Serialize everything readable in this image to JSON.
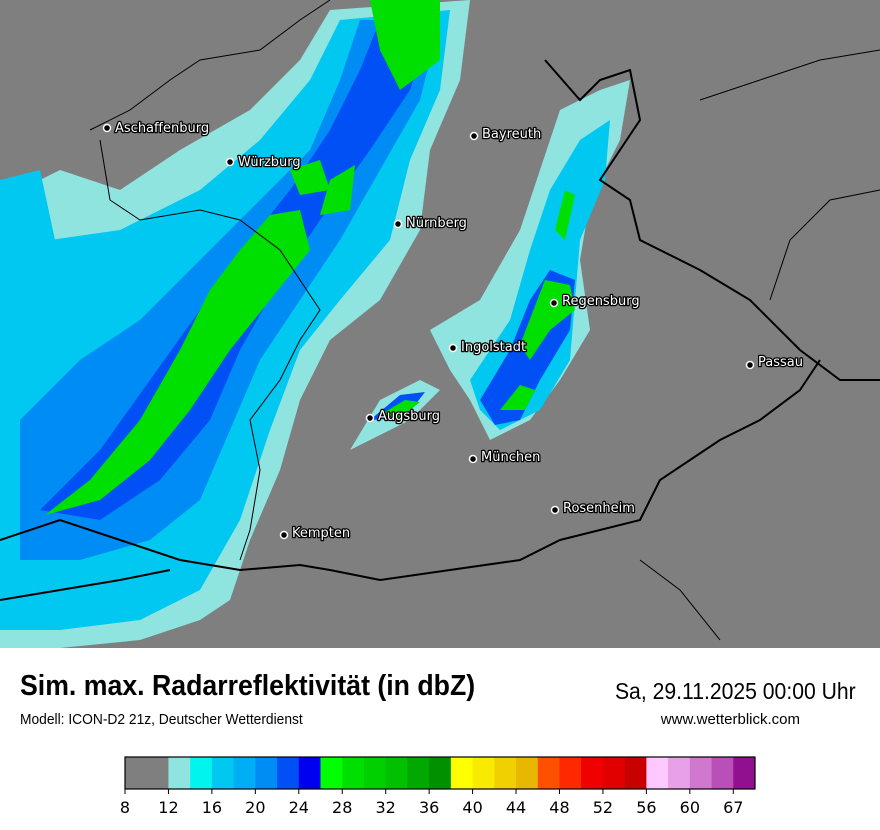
{
  "header": {
    "title": "Sim. max. Radarreflektivität (in dbZ)",
    "subtitle": "Modell: ICON-D2 21z, Deutscher Wetterdienst",
    "datetime": "Sa, 29.11.2025 00:00 Uhr",
    "website": "www.wetterblick.com"
  },
  "map": {
    "background_color": "#7f7f7f",
    "cities": [
      {
        "name": "Aschaffenburg"
      },
      {
        "name": "Würzburg"
      },
      {
        "name": "Bayreuth"
      },
      {
        "name": "Nürnberg"
      },
      {
        "name": "Regensburg"
      },
      {
        "name": "Ingolstadt"
      },
      {
        "name": "Passau"
      },
      {
        "name": "Augsburg"
      },
      {
        "name": "München"
      },
      {
        "name": "Rosenheim"
      },
      {
        "name": "Kempten"
      }
    ]
  },
  "legend": {
    "unit": "dbZ",
    "tick_labels": [
      "8",
      "12",
      "16",
      "20",
      "24",
      "28",
      "32",
      "36",
      "40",
      "44",
      "48",
      "52",
      "56",
      "60",
      "67"
    ],
    "colors": [
      "#7f7f7f",
      "#7f7f7f",
      "#90e4e0",
      "#00f5ee",
      "#00c8f0",
      "#00aef5",
      "#008cf5",
      "#0050f5",
      "#0000f0",
      "#00ff00",
      "#00e000",
      "#00d000",
      "#00c000",
      "#00a800",
      "#009000",
      "#ffff00",
      "#f8ea00",
      "#f0d000",
      "#e8b800",
      "#ff5000",
      "#ff2800",
      "#f00000",
      "#e00000",
      "#c80000",
      "#ffc8ff",
      "#e8a0e8",
      "#d078d0",
      "#b850b8",
      "#901090"
    ]
  }
}
